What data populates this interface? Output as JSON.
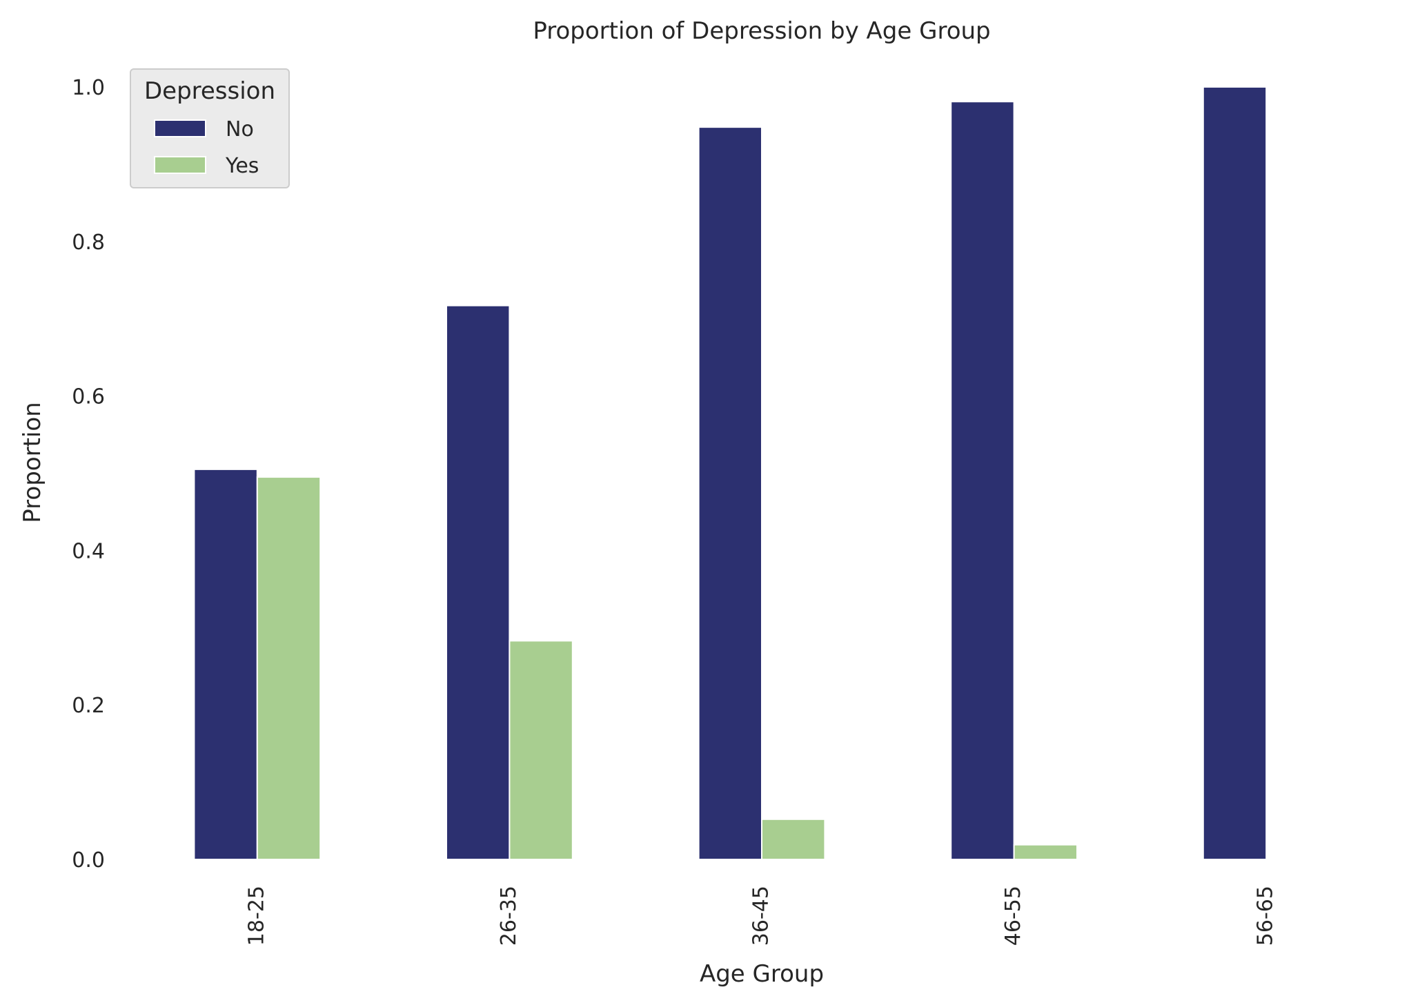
{
  "chart_data": {
    "type": "bar",
    "title": "Proportion of Depression by Age Group",
    "xlabel": "Age Group",
    "ylabel": "Proportion",
    "categories": [
      "18-25",
      "26-35",
      "36-45",
      "46-55",
      "56-65"
    ],
    "series": [
      {
        "name": "No",
        "color": "#2c3070",
        "values": [
          0.505,
          0.717,
          0.948,
          0.981,
          1.0
        ]
      },
      {
        "name": "Yes",
        "color": "#a8ce90",
        "values": [
          0.495,
          0.283,
          0.052,
          0.019,
          0.0
        ]
      }
    ],
    "ylim": [
      0,
      1.05
    ],
    "yticks": [
      0.0,
      0.2,
      0.4,
      0.6,
      0.8,
      1.0
    ],
    "ytick_labels": [
      "0.0",
      "0.2",
      "0.4",
      "0.6",
      "0.8",
      "1.0"
    ],
    "legend": {
      "title": "Depression",
      "position": "top-left"
    },
    "grid": false
  }
}
